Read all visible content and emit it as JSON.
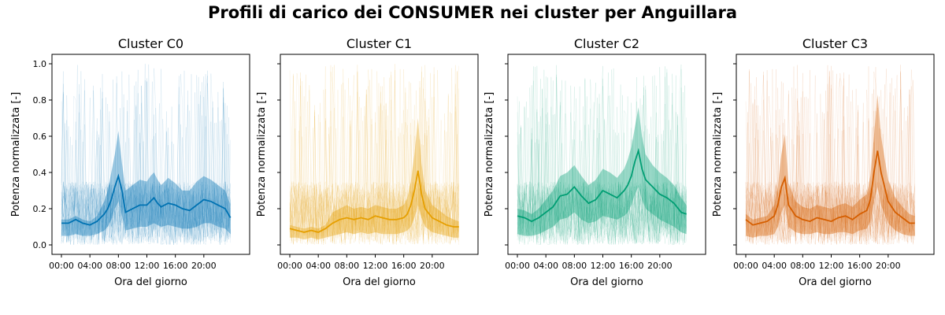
{
  "figure": {
    "title": "Profili di carico dei CONSUMER nei cluster per Anguillara"
  },
  "chart_data": [
    {
      "type": "line",
      "title": "Cluster C0",
      "xlabel": "Ora del giorno",
      "ylabel": "Potenza normalizzata [-]",
      "color": "#0072b2",
      "xticks": [
        "00:00",
        "04:00",
        "08:00",
        "12:00",
        "16:00",
        "20:00"
      ],
      "yticks": [
        "0.0",
        "0.2",
        "0.4",
        "0.6",
        "0.8",
        "1.0"
      ],
      "xlim": [
        0,
        24
      ],
      "ylim": [
        0,
        1
      ],
      "x_hours": [
        0,
        1,
        2,
        3,
        4,
        5,
        6,
        6.5,
        7,
        7.5,
        8,
        8.5,
        9,
        10,
        11,
        12,
        12.5,
        13,
        13.5,
        14,
        15,
        16,
        17,
        18,
        19,
        20,
        21,
        22,
        23,
        23.75
      ],
      "mean": [
        0.12,
        0.12,
        0.14,
        0.12,
        0.11,
        0.13,
        0.17,
        0.2,
        0.25,
        0.32,
        0.38,
        0.3,
        0.18,
        0.2,
        0.22,
        0.22,
        0.24,
        0.26,
        0.23,
        0.21,
        0.23,
        0.22,
        0.2,
        0.19,
        0.22,
        0.25,
        0.24,
        0.22,
        0.2,
        0.15
      ],
      "band_low": [
        0.05,
        0.05,
        0.06,
        0.05,
        0.05,
        0.06,
        0.08,
        0.1,
        0.14,
        0.2,
        0.24,
        0.16,
        0.08,
        0.09,
        0.1,
        0.1,
        0.11,
        0.12,
        0.11,
        0.1,
        0.11,
        0.1,
        0.09,
        0.09,
        0.1,
        0.12,
        0.12,
        0.1,
        0.09,
        0.06
      ],
      "band_high": [
        0.14,
        0.14,
        0.16,
        0.14,
        0.13,
        0.16,
        0.24,
        0.3,
        0.4,
        0.5,
        0.63,
        0.45,
        0.3,
        0.33,
        0.36,
        0.35,
        0.38,
        0.4,
        0.36,
        0.33,
        0.37,
        0.34,
        0.3,
        0.3,
        0.35,
        0.38,
        0.36,
        0.33,
        0.3,
        0.22
      ]
    },
    {
      "type": "line",
      "title": "Cluster C1",
      "xlabel": "Ora del giorno",
      "ylabel": "Potenza normalizzata [-]",
      "color": "#e69f00",
      "xticks": [
        "00:00",
        "04:00",
        "08:00",
        "12:00",
        "16:00",
        "20:00"
      ],
      "yticks": [
        "0.0",
        "0.2",
        "0.4",
        "0.6",
        "0.8",
        "1.0"
      ],
      "xlim": [
        0,
        24
      ],
      "ylim": [
        0,
        1
      ],
      "x_hours": [
        0,
        1,
        2,
        3,
        4,
        5,
        6,
        7,
        8,
        9,
        10,
        11,
        12,
        13,
        14,
        15,
        16,
        16.5,
        17,
        17.5,
        18,
        18.5,
        19,
        20,
        21,
        22,
        23,
        23.75
      ],
      "mean": [
        0.09,
        0.08,
        0.07,
        0.08,
        0.07,
        0.09,
        0.12,
        0.14,
        0.15,
        0.14,
        0.15,
        0.14,
        0.16,
        0.15,
        0.14,
        0.14,
        0.15,
        0.17,
        0.22,
        0.3,
        0.41,
        0.28,
        0.2,
        0.15,
        0.13,
        0.11,
        0.1,
        0.1
      ],
      "band_low": [
        0.04,
        0.04,
        0.03,
        0.04,
        0.03,
        0.04,
        0.05,
        0.06,
        0.07,
        0.06,
        0.07,
        0.06,
        0.07,
        0.06,
        0.06,
        0.06,
        0.07,
        0.08,
        0.1,
        0.15,
        0.22,
        0.15,
        0.1,
        0.07,
        0.06,
        0.05,
        0.04,
        0.04
      ],
      "band_high": [
        0.11,
        0.1,
        0.09,
        0.1,
        0.09,
        0.11,
        0.18,
        0.2,
        0.22,
        0.2,
        0.21,
        0.2,
        0.22,
        0.21,
        0.2,
        0.2,
        0.22,
        0.26,
        0.35,
        0.5,
        0.7,
        0.45,
        0.3,
        0.22,
        0.19,
        0.16,
        0.14,
        0.13
      ]
    },
    {
      "type": "line",
      "title": "Cluster C2",
      "xlabel": "Ora del giorno",
      "ylabel": "Potenza normalizzata [-]",
      "color": "#009e73",
      "xticks": [
        "00:00",
        "04:00",
        "08:00",
        "12:00",
        "16:00",
        "20:00"
      ],
      "yticks": [
        "0.0",
        "0.2",
        "0.4",
        "0.6",
        "0.8",
        "1.0"
      ],
      "xlim": [
        0,
        24
      ],
      "ylim": [
        0,
        1
      ],
      "x_hours": [
        0,
        1,
        2,
        3,
        4,
        5,
        6,
        7,
        8,
        9,
        10,
        11,
        12,
        13,
        14,
        15,
        15.5,
        16,
        16.5,
        17,
        17.5,
        18,
        19,
        20,
        21,
        22,
        23,
        23.75
      ],
      "mean": [
        0.16,
        0.15,
        0.13,
        0.15,
        0.18,
        0.21,
        0.27,
        0.28,
        0.32,
        0.27,
        0.23,
        0.25,
        0.3,
        0.28,
        0.26,
        0.3,
        0.33,
        0.38,
        0.46,
        0.52,
        0.42,
        0.36,
        0.32,
        0.28,
        0.26,
        0.23,
        0.18,
        0.17
      ],
      "band_low": [
        0.06,
        0.05,
        0.05,
        0.06,
        0.08,
        0.1,
        0.14,
        0.15,
        0.18,
        0.14,
        0.12,
        0.13,
        0.16,
        0.15,
        0.14,
        0.16,
        0.18,
        0.22,
        0.28,
        0.32,
        0.25,
        0.2,
        0.17,
        0.14,
        0.12,
        0.1,
        0.07,
        0.06
      ],
      "band_high": [
        0.2,
        0.19,
        0.17,
        0.2,
        0.25,
        0.3,
        0.38,
        0.4,
        0.44,
        0.38,
        0.33,
        0.36,
        0.42,
        0.4,
        0.37,
        0.42,
        0.47,
        0.54,
        0.65,
        0.76,
        0.6,
        0.5,
        0.44,
        0.4,
        0.37,
        0.33,
        0.26,
        0.22
      ]
    },
    {
      "type": "line",
      "title": "Cluster C3",
      "xlabel": "Ora del giorno",
      "ylabel": "Potenza normalizzata [-]",
      "color": "#d55e00",
      "xticks": [
        "00:00",
        "04:00",
        "08:00",
        "12:00",
        "16:00",
        "20:00"
      ],
      "yticks": [
        "0.0",
        "0.2",
        "0.4",
        "0.6",
        "0.8",
        "1.0"
      ],
      "xlim": [
        0,
        24
      ],
      "ylim": [
        0,
        1
      ],
      "x_hours": [
        0,
        1,
        2,
        3,
        4,
        4.5,
        5,
        5.5,
        6,
        7,
        8,
        9,
        10,
        11,
        12,
        13,
        14,
        15,
        16,
        17,
        17.5,
        18,
        18.5,
        19,
        20,
        21,
        22,
        23,
        23.75
      ],
      "mean": [
        0.14,
        0.11,
        0.12,
        0.13,
        0.16,
        0.22,
        0.32,
        0.37,
        0.22,
        0.16,
        0.14,
        0.13,
        0.15,
        0.14,
        0.13,
        0.15,
        0.16,
        0.14,
        0.17,
        0.19,
        0.25,
        0.4,
        0.52,
        0.4,
        0.24,
        0.18,
        0.15,
        0.12,
        0.12
      ],
      "band_low": [
        0.05,
        0.04,
        0.05,
        0.05,
        0.06,
        0.1,
        0.18,
        0.22,
        0.1,
        0.07,
        0.06,
        0.06,
        0.07,
        0.06,
        0.06,
        0.07,
        0.07,
        0.06,
        0.08,
        0.09,
        0.13,
        0.24,
        0.32,
        0.22,
        0.12,
        0.08,
        0.06,
        0.05,
        0.05
      ],
      "band_high": [
        0.17,
        0.14,
        0.15,
        0.16,
        0.22,
        0.32,
        0.5,
        0.61,
        0.34,
        0.24,
        0.21,
        0.2,
        0.22,
        0.21,
        0.2,
        0.22,
        0.23,
        0.21,
        0.25,
        0.28,
        0.38,
        0.6,
        0.83,
        0.6,
        0.36,
        0.26,
        0.21,
        0.17,
        0.16
      ]
    }
  ]
}
